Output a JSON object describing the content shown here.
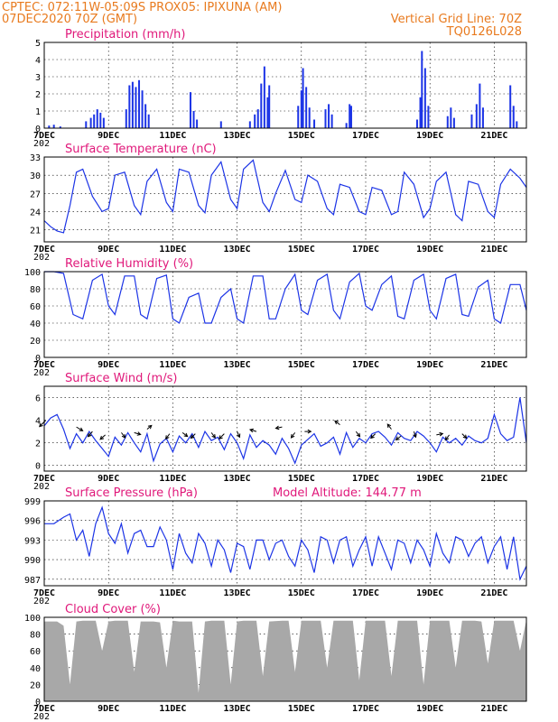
{
  "header": {
    "line1_left": "CPTEC:   072:11W-05:09S   PROX05: IPIXUNA (AM)",
    "line2_left": "07DEC2020 70Z (GMT)",
    "line2_right": "Vertical Grid Line: 70Z",
    "line3_right": "TQ0126L028"
  },
  "colors": {
    "header": "#e87a1e",
    "title": "#e0187a",
    "line": "#1c34e6",
    "bar": "#1c34e6",
    "cloud": "#a8a8a8"
  },
  "x_ticks": [
    "7DEC",
    "9DEC",
    "11DEC",
    "13DEC",
    "15DEC",
    "17DEC",
    "19DEC",
    "21DEC"
  ],
  "year_fragment": "202",
  "chart_data": [
    {
      "type": "bar",
      "title": "Precipitation (mm/h)",
      "ylim": [
        0,
        5
      ],
      "yticks": [
        "0",
        "1",
        "2",
        "3",
        "4",
        "5"
      ],
      "xlim_days": [
        7,
        22
      ],
      "bars": [
        [
          7.15,
          0.15
        ],
        [
          7.3,
          0.2
        ],
        [
          7.5,
          0.1
        ],
        [
          8.3,
          0.4
        ],
        [
          8.45,
          0.6
        ],
        [
          8.55,
          0.8
        ],
        [
          8.65,
          1.1
        ],
        [
          8.75,
          0.9
        ],
        [
          8.85,
          0.6
        ],
        [
          9.55,
          1.1
        ],
        [
          9.65,
          2.5
        ],
        [
          9.75,
          2.7
        ],
        [
          9.85,
          2.4
        ],
        [
          9.95,
          2.8
        ],
        [
          10.05,
          2.2
        ],
        [
          10.15,
          1.4
        ],
        [
          10.25,
          0.8
        ],
        [
          11.55,
          2.1
        ],
        [
          11.65,
          1.0
        ],
        [
          11.75,
          0.5
        ],
        [
          12.5,
          0.4
        ],
        [
          13.4,
          0.4
        ],
        [
          13.55,
          0.8
        ],
        [
          13.65,
          1.1
        ],
        [
          13.75,
          2.6
        ],
        [
          13.85,
          3.6
        ],
        [
          13.95,
          1.8
        ],
        [
          14.0,
          2.5
        ],
        [
          14.9,
          1.3
        ],
        [
          15.0,
          2.2
        ],
        [
          15.05,
          3.5
        ],
        [
          15.15,
          2.4
        ],
        [
          15.25,
          1.2
        ],
        [
          15.4,
          0.5
        ],
        [
          15.75,
          1.1
        ],
        [
          15.85,
          1.4
        ],
        [
          15.95,
          0.8
        ],
        [
          16.4,
          0.3
        ],
        [
          16.5,
          1.4
        ],
        [
          16.55,
          1.3
        ],
        [
          18.6,
          0.5
        ],
        [
          18.7,
          1.8
        ],
        [
          18.75,
          4.5
        ],
        [
          18.85,
          3.5
        ],
        [
          18.95,
          1.3
        ],
        [
          19.55,
          0.7
        ],
        [
          19.65,
          1.2
        ],
        [
          19.75,
          0.6
        ],
        [
          20.3,
          0.8
        ],
        [
          20.45,
          1.4
        ],
        [
          20.55,
          2.6
        ],
        [
          20.65,
          1.2
        ],
        [
          21.5,
          2.5
        ],
        [
          21.6,
          1.3
        ],
        [
          21.7,
          0.4
        ]
      ]
    },
    {
      "type": "line",
      "title": "Surface Temperature (nC)",
      "ylim": [
        19,
        33
      ],
      "yticks": [
        "21",
        "24",
        "27",
        "30",
        "33"
      ],
      "xlim_days": [
        7,
        22
      ],
      "x": [
        7.0,
        7.2,
        7.4,
        7.6,
        7.8,
        8.0,
        8.2,
        8.5,
        8.8,
        9.0,
        9.2,
        9.5,
        9.8,
        10.0,
        10.2,
        10.5,
        10.8,
        11.0,
        11.2,
        11.5,
        11.8,
        12.0,
        12.2,
        12.5,
        12.8,
        13.0,
        13.2,
        13.5,
        13.8,
        14.0,
        14.2,
        14.5,
        14.8,
        15.0,
        15.2,
        15.5,
        15.8,
        16.0,
        16.2,
        16.5,
        16.8,
        17.0,
        17.2,
        17.5,
        17.8,
        18.0,
        18.2,
        18.5,
        18.8,
        19.0,
        19.2,
        19.5,
        19.8,
        20.0,
        20.2,
        20.5,
        20.8,
        21.0,
        21.2,
        21.5,
        21.8,
        22.0
      ],
      "y": [
        22.5,
        21.5,
        20.8,
        20.5,
        25.0,
        30.5,
        31.0,
        26.5,
        24.0,
        24.5,
        30.0,
        30.5,
        25.0,
        23.5,
        29.0,
        31.0,
        25.5,
        24.0,
        31.0,
        30.5,
        25.0,
        23.8,
        30.0,
        32.2,
        26.0,
        24.5,
        31.0,
        32.5,
        25.5,
        24.0,
        27.0,
        30.8,
        26.0,
        25.5,
        30.0,
        29.0,
        24.5,
        23.5,
        28.5,
        28.0,
        24.0,
        23.5,
        28.0,
        27.5,
        23.5,
        24.0,
        30.5,
        28.5,
        23.0,
        24.5,
        29.0,
        30.5,
        23.5,
        22.5,
        29.0,
        28.5,
        24.0,
        23.0,
        28.5,
        31.0,
        29.5,
        28.0
      ]
    },
    {
      "type": "line",
      "title": "Relative Humidity (%)",
      "ylim": [
        0,
        100
      ],
      "yticks": [
        "0",
        "20",
        "40",
        "60",
        "80",
        "100"
      ],
      "xlim_days": [
        7,
        22
      ],
      "x": [
        7.0,
        7.3,
        7.6,
        7.9,
        8.2,
        8.5,
        8.8,
        9.0,
        9.2,
        9.5,
        9.8,
        10.0,
        10.2,
        10.5,
        10.8,
        11.0,
        11.2,
        11.5,
        11.8,
        12.0,
        12.2,
        12.5,
        12.8,
        13.0,
        13.2,
        13.5,
        13.8,
        14.0,
        14.2,
        14.5,
        14.8,
        15.0,
        15.2,
        15.5,
        15.8,
        16.0,
        16.2,
        16.5,
        16.8,
        17.0,
        17.2,
        17.5,
        17.8,
        18.0,
        18.2,
        18.5,
        18.8,
        19.0,
        19.2,
        19.5,
        19.8,
        20.0,
        20.2,
        20.5,
        20.8,
        21.0,
        21.2,
        21.5,
        21.8,
        22.0
      ],
      "y": [
        100,
        100,
        98,
        50,
        45,
        90,
        97,
        60,
        50,
        95,
        95,
        50,
        45,
        92,
        96,
        45,
        40,
        70,
        75,
        40,
        40,
        70,
        80,
        45,
        40,
        95,
        95,
        45,
        45,
        80,
        97,
        55,
        50,
        90,
        97,
        55,
        45,
        88,
        98,
        60,
        55,
        85,
        95,
        48,
        45,
        90,
        97,
        55,
        45,
        92,
        97,
        50,
        48,
        82,
        90,
        45,
        40,
        85,
        85,
        55
      ]
    },
    {
      "type": "line",
      "title": "Surface Wind (m/s)",
      "ylim": [
        -0.5,
        7
      ],
      "yticks": [
        "0",
        "2",
        "4",
        "6"
      ],
      "xlim_days": [
        7,
        22
      ],
      "x": [
        7.0,
        7.2,
        7.4,
        7.6,
        7.8,
        8.0,
        8.2,
        8.4,
        8.6,
        8.8,
        9.0,
        9.2,
        9.4,
        9.6,
        9.8,
        10.0,
        10.2,
        10.4,
        10.6,
        10.8,
        11.0,
        11.2,
        11.4,
        11.6,
        11.8,
        12.0,
        12.2,
        12.4,
        12.6,
        12.8,
        13.0,
        13.2,
        13.4,
        13.6,
        13.8,
        14.0,
        14.2,
        14.4,
        14.6,
        14.8,
        15.0,
        15.2,
        15.4,
        15.6,
        15.8,
        16.0,
        16.2,
        16.4,
        16.6,
        16.8,
        17.0,
        17.2,
        17.4,
        17.6,
        17.8,
        18.0,
        18.2,
        18.4,
        18.6,
        18.8,
        19.0,
        19.2,
        19.4,
        19.6,
        19.8,
        20.0,
        20.2,
        20.4,
        20.6,
        20.8,
        21.0,
        21.2,
        21.4,
        21.6,
        21.8,
        22.0
      ],
      "y": [
        3.5,
        4.2,
        4.5,
        3.2,
        1.5,
        2.8,
        2.0,
        3.0,
        2.2,
        1.5,
        0.8,
        2.5,
        1.8,
        2.9,
        2.0,
        1.2,
        2.8,
        0.4,
        1.9,
        2.4,
        1.2,
        2.6,
        2.0,
        2.8,
        1.6,
        3.0,
        2.2,
        2.5,
        1.4,
        2.8,
        2.0,
        0.6,
        2.7,
        1.6,
        2.2,
        1.8,
        1.0,
        2.4,
        1.5,
        0.2,
        1.8,
        2.3,
        2.8,
        1.7,
        2.0,
        2.5,
        1.0,
        2.9,
        1.6,
        2.4,
        2.0,
        2.8,
        3.0,
        2.5,
        1.8,
        2.9,
        2.4,
        2.2,
        3.0,
        2.6,
        2.0,
        1.2,
        2.5,
        2.0,
        2.4,
        1.8,
        2.6,
        2.2,
        2.0,
        2.4,
        4.5,
        2.8,
        2.2,
        2.5,
        6.0,
        2.0
      ],
      "arrows": [
        [
          7.05,
          4.0,
          -1,
          -1
        ],
        [
          8.0,
          3.4,
          1,
          -0.6
        ],
        [
          8.5,
          3.0,
          -0.7,
          -0.8
        ],
        [
          8.9,
          2.7,
          -0.8,
          -0.7
        ],
        [
          9.4,
          2.9,
          0.6,
          -0.8
        ],
        [
          9.8,
          2.9,
          1,
          -0.3
        ],
        [
          10.2,
          3.2,
          0.7,
          0.6
        ],
        [
          10.9,
          2.8,
          -0.6,
          -0.8
        ],
        [
          11.3,
          2.9,
          0.8,
          -0.6
        ],
        [
          11.7,
          2.8,
          -0.7,
          -0.7
        ],
        [
          12.2,
          2.9,
          0.6,
          -0.8
        ],
        [
          12.6,
          2.8,
          -0.8,
          -0.8
        ],
        [
          13.0,
          3.0,
          0.4,
          -0.9
        ],
        [
          13.6,
          3.0,
          -1,
          0.3
        ],
        [
          14.4,
          3.4,
          -1,
          -0.2
        ],
        [
          14.8,
          2.9,
          -0.6,
          -0.8
        ],
        [
          15.1,
          3.0,
          1,
          0
        ],
        [
          16.2,
          3.6,
          -0.8,
          0.6
        ],
        [
          16.7,
          3.0,
          0.6,
          -0.8
        ],
        [
          17.3,
          2.8,
          -0.7,
          -0.7
        ],
        [
          17.8,
          3.2,
          -0.6,
          0.8
        ],
        [
          18.1,
          2.6,
          -0.8,
          -0.6
        ],
        [
          18.5,
          3.0,
          0.3,
          -0.9
        ],
        [
          19.2,
          2.7,
          1,
          0.2
        ],
        [
          19.6,
          2.7,
          -0.6,
          -0.8
        ],
        [
          20.0,
          2.8,
          0.7,
          -0.7
        ]
      ]
    },
    {
      "type": "line",
      "title": "Surface Pressure (hPa)",
      "annotation": "Model Altitude: 144.77 m",
      "ylim": [
        986,
        999
      ],
      "yticks": [
        "987",
        "990",
        "993",
        "996",
        "999"
      ],
      "xlim_days": [
        7,
        22
      ],
      "x": [
        7.0,
        7.3,
        7.6,
        7.8,
        8.0,
        8.2,
        8.4,
        8.6,
        8.8,
        9.0,
        9.2,
        9.4,
        9.6,
        9.8,
        10.0,
        10.2,
        10.4,
        10.6,
        10.8,
        11.0,
        11.2,
        11.4,
        11.6,
        11.8,
        12.0,
        12.2,
        12.4,
        12.6,
        12.8,
        13.0,
        13.2,
        13.4,
        13.6,
        13.8,
        14.0,
        14.2,
        14.4,
        14.6,
        14.8,
        15.0,
        15.2,
        15.4,
        15.6,
        15.8,
        16.0,
        16.2,
        16.4,
        16.6,
        16.8,
        17.0,
        17.2,
        17.4,
        17.6,
        17.8,
        18.0,
        18.2,
        18.4,
        18.6,
        18.8,
        19.0,
        19.2,
        19.4,
        19.6,
        19.8,
        20.0,
        20.2,
        20.4,
        20.6,
        20.8,
        21.0,
        21.2,
        21.4,
        21.6,
        21.8,
        22.0
      ],
      "y": [
        995.5,
        995.5,
        996.5,
        997.0,
        993.0,
        994.5,
        990.5,
        995.5,
        998.0,
        994.0,
        992.5,
        995.5,
        991.0,
        994.0,
        994.5,
        992.0,
        992.0,
        995.0,
        993.0,
        988.5,
        994.0,
        991.0,
        989.5,
        994.0,
        992.5,
        989.0,
        993.0,
        991.5,
        988.0,
        992.5,
        992.0,
        988.5,
        993.0,
        993.0,
        990.0,
        992.5,
        993.0,
        990.5,
        989.0,
        993.0,
        991.5,
        988.0,
        993.5,
        993.0,
        989.5,
        993.0,
        993.5,
        989.0,
        991.5,
        993.5,
        989.0,
        993.5,
        991.0,
        988.5,
        993.0,
        992.5,
        989.5,
        993.0,
        991.5,
        989.0,
        994.0,
        991.0,
        989.5,
        993.5,
        993.0,
        990.5,
        992.5,
        993.5,
        989.5,
        992.0,
        993.5,
        988.5,
        993.5,
        987.0,
        989.0
      ]
    },
    {
      "type": "area",
      "title": "Cloud Cover (%)",
      "ylim": [
        0,
        100
      ],
      "yticks": [
        "0",
        "20",
        "40",
        "60",
        "80",
        "100"
      ],
      "xlim_days": [
        7,
        22
      ],
      "x": [
        7.0,
        7.4,
        7.6,
        7.8,
        8.0,
        8.2,
        8.6,
        8.8,
        9.0,
        9.2,
        9.6,
        9.8,
        10.0,
        10.4,
        10.6,
        10.8,
        11.0,
        11.2,
        11.6,
        11.8,
        12.0,
        12.2,
        12.6,
        12.8,
        13.0,
        13.2,
        13.6,
        13.8,
        14.0,
        14.4,
        14.6,
        14.8,
        15.0,
        15.4,
        15.6,
        15.8,
        16.0,
        16.4,
        16.6,
        16.8,
        17.0,
        17.4,
        17.6,
        17.8,
        18.0,
        18.4,
        18.6,
        18.8,
        19.0,
        19.4,
        19.6,
        19.8,
        20.0,
        20.4,
        20.6,
        20.8,
        21.0,
        21.4,
        21.6,
        21.8,
        22.0
      ],
      "y": [
        95,
        95,
        90,
        20,
        95,
        96,
        96,
        60,
        95,
        96,
        96,
        35,
        95,
        95,
        94,
        40,
        96,
        95,
        95,
        10,
        95,
        96,
        96,
        20,
        95,
        96,
        96,
        30,
        95,
        96,
        96,
        35,
        96,
        96,
        96,
        40,
        96,
        96,
        96,
        25,
        96,
        96,
        96,
        30,
        96,
        96,
        96,
        20,
        96,
        96,
        96,
        40,
        96,
        96,
        95,
        45,
        96,
        96,
        96,
        60,
        97
      ]
    }
  ]
}
